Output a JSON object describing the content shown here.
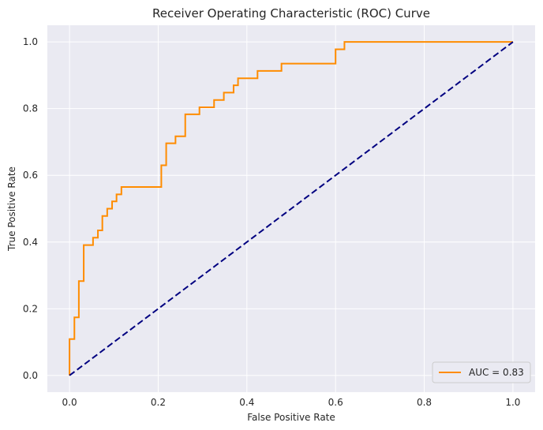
{
  "chart_data": {
    "type": "line",
    "title": "Receiver Operating Characteristic (ROC) Curve",
    "xlabel": "False Positive Rate",
    "ylabel": "True Positive Rate",
    "xlim": [
      -0.05,
      1.05
    ],
    "ylim": [
      -0.05,
      1.05
    ],
    "xticks": [
      "0.0",
      "0.2",
      "0.4",
      "0.6",
      "0.8",
      "1.0"
    ],
    "yticks": [
      "0.0",
      "0.2",
      "0.4",
      "0.6",
      "0.8",
      "1.0"
    ],
    "grid": true,
    "legend": {
      "placement": "lower-right",
      "entries": [
        "AUC = 0.83"
      ]
    },
    "series": [
      {
        "name": "AUC = 0.83",
        "color": "#ff8c00",
        "style": "solid",
        "x": [
          0.0,
          0.0,
          0.011,
          0.011,
          0.021,
          0.021,
          0.032,
          0.032,
          0.053,
          0.053,
          0.064,
          0.064,
          0.074,
          0.074,
          0.085,
          0.085,
          0.096,
          0.096,
          0.106,
          0.106,
          0.117,
          0.117,
          0.207,
          0.207,
          0.218,
          0.218,
          0.239,
          0.239,
          0.261,
          0.261,
          0.293,
          0.293,
          0.326,
          0.326,
          0.348,
          0.348,
          0.37,
          0.37,
          0.38,
          0.38,
          0.424,
          0.424,
          0.478,
          0.478,
          0.6,
          0.6,
          0.62,
          0.62,
          1.0
        ],
        "y": [
          0.0,
          0.109,
          0.109,
          0.174,
          0.174,
          0.283,
          0.283,
          0.391,
          0.391,
          0.413,
          0.413,
          0.435,
          0.435,
          0.478,
          0.478,
          0.5,
          0.5,
          0.522,
          0.522,
          0.543,
          0.543,
          0.565,
          0.565,
          0.63,
          0.63,
          0.696,
          0.696,
          0.717,
          0.717,
          0.783,
          0.783,
          0.804,
          0.804,
          0.826,
          0.826,
          0.848,
          0.848,
          0.87,
          0.87,
          0.891,
          0.891,
          0.913,
          0.913,
          0.935,
          0.935,
          0.978,
          0.978,
          1.0,
          1.0
        ]
      },
      {
        "color": "#000080",
        "style": "dashed",
        "x": [
          0.0,
          1.0
        ],
        "y": [
          0.0,
          1.0
        ]
      }
    ]
  }
}
